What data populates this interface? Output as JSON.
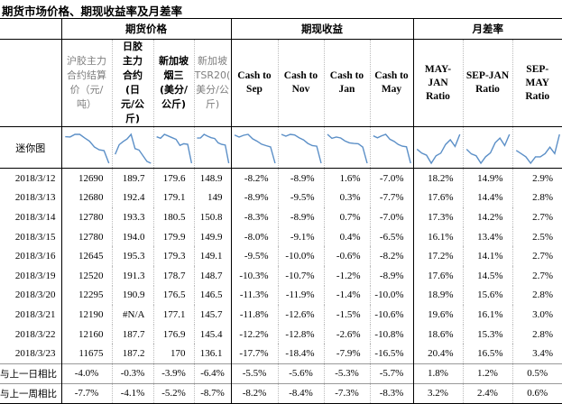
{
  "title": "期货市场价格、期现收益率及月差率",
  "groups": {
    "prices": "期货价格",
    "returns": "期现收益",
    "spreads": "月差率"
  },
  "columns": [
    {
      "key": "shfe",
      "label": [
        "沪胶主力",
        "合约结算",
        "价（元/",
        "吨）"
      ],
      "style": "zh"
    },
    {
      "key": "tocom",
      "label": [
        "日胶",
        "主力",
        "合约",
        "(日",
        "元/公",
        "斤)"
      ],
      "style": "zhb"
    },
    {
      "key": "sgx",
      "label": [
        "新加坡",
        "烟三",
        "(美分/",
        "公斤)"
      ],
      "style": "zhb"
    },
    {
      "key": "tsr",
      "label": [
        "新加坡",
        "TSR20(",
        "美分/公",
        "斤)"
      ],
      "style": "zh"
    },
    {
      "key": "cash_sep",
      "label": [
        "Cash to",
        "Sep"
      ],
      "style": "en"
    },
    {
      "key": "cash_nov",
      "label": [
        "Cash to",
        "Nov"
      ],
      "style": "en"
    },
    {
      "key": "cash_jan",
      "label": [
        "Cash to",
        "Jan"
      ],
      "style": "en"
    },
    {
      "key": "cash_may",
      "label": [
        "Cash to",
        "May"
      ],
      "style": "en"
    },
    {
      "key": "may_jan",
      "label": [
        "MAY-",
        "JAN",
        "Ratio"
      ],
      "style": "en"
    },
    {
      "key": "sep_jan",
      "label": [
        "SEP-JAN",
        "Ratio"
      ],
      "style": "en"
    },
    {
      "key": "sep_may",
      "label": [
        "SEP-",
        "MAY",
        "Ratio"
      ],
      "style": "en"
    }
  ],
  "sparkline_label": "迷你图",
  "rows": [
    {
      "date": "2018/3/12",
      "values": [
        "12690",
        "189.7",
        "179.6",
        "148.9",
        "-8.2%",
        "-8.9%",
        "1.6%",
        "-7.0%",
        "18.2%",
        "14.9%",
        "2.9%"
      ]
    },
    {
      "date": "2018/3/13",
      "values": [
        "12680",
        "192.4",
        "179.1",
        "149",
        "-8.9%",
        "-9.5%",
        "0.3%",
        "-7.7%",
        "17.6%",
        "14.4%",
        "2.8%"
      ]
    },
    {
      "date": "2018/3/14",
      "values": [
        "12780",
        "193.3",
        "180.5",
        "150.8",
        "-8.3%",
        "-8.9%",
        "0.7%",
        "-7.0%",
        "17.3%",
        "14.2%",
        "2.7%"
      ]
    },
    {
      "date": "2018/3/15",
      "values": [
        "12780",
        "194.0",
        "179.9",
        "149.9",
        "-8.0%",
        "-9.1%",
        "0.4%",
        "-6.5%",
        "16.1%",
        "13.4%",
        "2.5%"
      ]
    },
    {
      "date": "2018/3/16",
      "values": [
        "12645",
        "195.3",
        "179.3",
        "149.1",
        "-9.5%",
        "-10.0%",
        "-0.6%",
        "-8.2%",
        "17.2%",
        "14.1%",
        "2.7%"
      ]
    },
    {
      "date": "2018/3/19",
      "values": [
        "12520",
        "191.3",
        "178.7",
        "148.7",
        "-10.3%",
        "-10.7%",
        "-1.2%",
        "-8.9%",
        "17.6%",
        "14.5%",
        "2.7%"
      ]
    },
    {
      "date": "2018/3/20",
      "values": [
        "12295",
        "190.9",
        "176.5",
        "146.5",
        "-11.3%",
        "-11.9%",
        "-1.4%",
        "-10.0%",
        "18.9%",
        "15.6%",
        "2.8%"
      ]
    },
    {
      "date": "2018/3/21",
      "values": [
        "12190",
        "#N/A",
        "177.1",
        "145.7",
        "-11.8%",
        "-12.6%",
        "-1.5%",
        "-10.6%",
        "19.6%",
        "16.1%",
        "3.0%"
      ]
    },
    {
      "date": "2018/3/22",
      "values": [
        "12160",
        "187.7",
        "176.9",
        "145.4",
        "-12.2%",
        "-12.8%",
        "-2.6%",
        "-10.8%",
        "18.6%",
        "15.3%",
        "2.8%"
      ]
    },
    {
      "date": "2018/3/23",
      "values": [
        "11675",
        "187.2",
        "170",
        "136.1",
        "-17.7%",
        "-18.4%",
        "-7.9%",
        "-16.5%",
        "20.4%",
        "16.5%",
        "3.4%"
      ]
    }
  ],
  "compare": [
    {
      "label": "与上一日相比",
      "values": [
        "-4.0%",
        "-0.3%",
        "-3.9%",
        "-6.4%",
        "-5.5%",
        "-5.6%",
        "-5.3%",
        "-5.7%",
        "1.8%",
        "1.2%",
        "0.5%"
      ]
    },
    {
      "label": "与上一周相比",
      "values": [
        "-7.7%",
        "-4.1%",
        "-5.2%",
        "-8.7%",
        "-8.2%",
        "-8.4%",
        "-7.3%",
        "-8.3%",
        "3.2%",
        "2.4%",
        "0.6%"
      ]
    }
  ],
  "colors": {
    "sparkline": "#5b8fc7",
    "border": "#000000",
    "header_gray": "#7f7f7f"
  }
}
